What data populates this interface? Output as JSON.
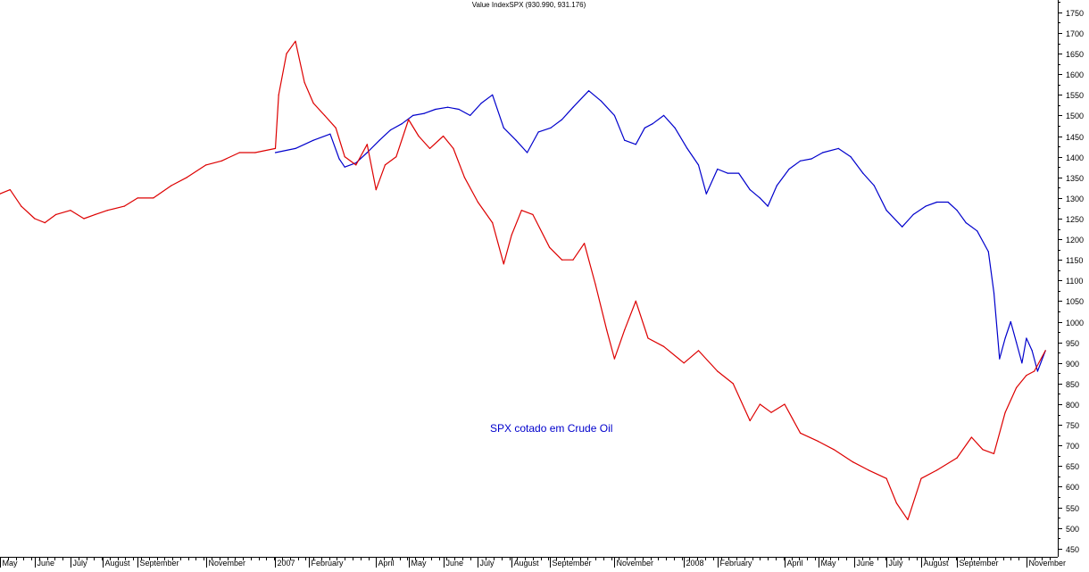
{
  "chart_data": {
    "type": "line",
    "title": "Value IndexSPX (930.990, 931.176)",
    "annotation": "SPX cotado em Crude Oil",
    "ylim": [
      430,
      1780
    ],
    "yticks": [
      450,
      500,
      550,
      600,
      650,
      700,
      750,
      800,
      850,
      900,
      950,
      1000,
      1050,
      1100,
      1150,
      1200,
      1250,
      1300,
      1350,
      1400,
      1450,
      1500,
      1550,
      1600,
      1650,
      1700,
      1750
    ],
    "x_labels": [
      "May",
      "June",
      "July",
      "August",
      "September",
      "November",
      "2007",
      "February",
      "April",
      "May",
      "June",
      "July",
      "August",
      "September",
      "November",
      "2008",
      "February",
      "April",
      "May",
      "June",
      "July",
      "August",
      "September",
      "November"
    ],
    "x_tick_dates": [
      "2006-05-01",
      "2006-06-01",
      "2006-07-03",
      "2006-08-01",
      "2006-09-01",
      "2006-11-01",
      "2007-01-02",
      "2007-02-01",
      "2007-04-02",
      "2007-05-01",
      "2007-06-01",
      "2007-07-02",
      "2007-08-01",
      "2007-09-04",
      "2007-11-01",
      "2008-01-02",
      "2008-02-01",
      "2008-04-01",
      "2008-05-01",
      "2008-06-02",
      "2008-07-01",
      "2008-08-01",
      "2008-09-02",
      "2008-11-03"
    ],
    "x_range": [
      "2006-05-01",
      "2008-12-01"
    ],
    "colors": {
      "SPX": "#0000cc",
      "SPX cotado em Crude Oil": "#dd0000",
      "annotation": "#0000cc"
    },
    "series": [
      {
        "name": "SPX",
        "x": [
          "2007-01-02",
          "2007-01-20",
          "2007-02-05",
          "2007-02-20",
          "2007-02-28",
          "2007-03-05",
          "2007-03-15",
          "2007-03-25",
          "2007-04-05",
          "2007-04-15",
          "2007-04-25",
          "2007-05-05",
          "2007-05-15",
          "2007-05-25",
          "2007-06-05",
          "2007-06-15",
          "2007-06-25",
          "2007-07-05",
          "2007-07-15",
          "2007-07-25",
          "2007-08-05",
          "2007-08-15",
          "2007-08-25",
          "2007-09-05",
          "2007-09-15",
          "2007-09-25",
          "2007-10-09",
          "2007-10-20",
          "2007-11-01",
          "2007-11-10",
          "2007-11-20",
          "2007-11-28",
          "2007-12-05",
          "2007-12-15",
          "2007-12-25",
          "2008-01-05",
          "2008-01-15",
          "2008-01-22",
          "2008-02-01",
          "2008-02-10",
          "2008-02-20",
          "2008-03-01",
          "2008-03-10",
          "2008-03-17",
          "2008-03-25",
          "2008-04-05",
          "2008-04-15",
          "2008-04-25",
          "2008-05-05",
          "2008-05-19",
          "2008-05-30",
          "2008-06-10",
          "2008-06-20",
          "2008-07-01",
          "2008-07-15",
          "2008-07-25",
          "2008-08-05",
          "2008-08-15",
          "2008-08-25",
          "2008-09-02",
          "2008-09-10",
          "2008-09-20",
          "2008-09-30",
          "2008-10-05",
          "2008-10-10",
          "2008-10-15",
          "2008-10-20",
          "2008-10-25",
          "2008-10-30",
          "2008-11-03",
          "2008-11-08",
          "2008-11-13",
          "2008-11-20"
        ],
        "y": [
          1410,
          1420,
          1440,
          1455,
          1395,
          1375,
          1385,
          1410,
          1440,
          1465,
          1480,
          1500,
          1505,
          1515,
          1520,
          1515,
          1500,
          1530,
          1550,
          1470,
          1440,
          1410,
          1460,
          1470,
          1490,
          1520,
          1560,
          1535,
          1500,
          1440,
          1430,
          1470,
          1480,
          1500,
          1470,
          1420,
          1380,
          1310,
          1370,
          1360,
          1360,
          1320,
          1300,
          1280,
          1330,
          1370,
          1390,
          1395,
          1410,
          1420,
          1400,
          1360,
          1330,
          1270,
          1230,
          1260,
          1280,
          1290,
          1290,
          1270,
          1240,
          1220,
          1170,
          1070,
          910,
          960,
          1000,
          950,
          900,
          960,
          930,
          880,
          930
        ]
      },
      {
        "name": "SPX cotado em Crude Oil",
        "x": [
          "2006-05-01",
          "2006-05-10",
          "2006-05-20",
          "2006-06-01",
          "2006-06-10",
          "2006-06-20",
          "2006-07-03",
          "2006-07-15",
          "2006-07-25",
          "2006-08-05",
          "2006-08-20",
          "2006-09-01",
          "2006-09-15",
          "2006-10-01",
          "2006-10-15",
          "2006-11-01",
          "2006-11-15",
          "2006-12-01",
          "2006-12-15",
          "2007-01-02",
          "2007-01-05",
          "2007-01-12",
          "2007-01-20",
          "2007-01-28",
          "2007-02-05",
          "2007-02-15",
          "2007-02-25",
          "2007-03-05",
          "2007-03-15",
          "2007-03-25",
          "2007-04-02",
          "2007-04-10",
          "2007-04-20",
          "2007-05-01",
          "2007-05-10",
          "2007-05-20",
          "2007-06-01",
          "2007-06-10",
          "2007-06-20",
          "2007-07-02",
          "2007-07-15",
          "2007-07-25",
          "2007-08-01",
          "2007-08-10",
          "2007-08-20",
          "2007-09-04",
          "2007-09-15",
          "2007-09-25",
          "2007-10-05",
          "2007-10-15",
          "2007-10-25",
          "2007-11-01",
          "2007-11-10",
          "2007-11-20",
          "2007-12-01",
          "2007-12-15",
          "2008-01-02",
          "2008-01-15",
          "2008-02-01",
          "2008-02-15",
          "2008-03-01",
          "2008-03-10",
          "2008-03-20",
          "2008-04-01",
          "2008-04-15",
          "2008-05-01",
          "2008-05-15",
          "2008-06-01",
          "2008-06-15",
          "2008-07-01",
          "2008-07-10",
          "2008-07-20",
          "2008-08-01",
          "2008-08-15",
          "2008-09-02",
          "2008-09-15",
          "2008-09-25",
          "2008-10-05",
          "2008-10-15",
          "2008-10-25",
          "2008-11-03",
          "2008-11-10",
          "2008-11-20"
        ],
        "y": [
          1310,
          1320,
          1280,
          1250,
          1240,
          1260,
          1270,
          1250,
          1260,
          1270,
          1280,
          1300,
          1300,
          1330,
          1350,
          1380,
          1390,
          1410,
          1410,
          1420,
          1550,
          1650,
          1680,
          1580,
          1530,
          1500,
          1470,
          1400,
          1380,
          1430,
          1320,
          1380,
          1400,
          1490,
          1450,
          1420,
          1450,
          1420,
          1350,
          1290,
          1240,
          1140,
          1210,
          1270,
          1260,
          1180,
          1150,
          1150,
          1190,
          1090,
          980,
          910,
          980,
          1050,
          960,
          940,
          900,
          930,
          880,
          850,
          760,
          800,
          780,
          800,
          730,
          710,
          690,
          660,
          640,
          620,
          560,
          520,
          620,
          640,
          670,
          720,
          690,
          680,
          780,
          840,
          870,
          880,
          930
        ]
      }
    ]
  }
}
